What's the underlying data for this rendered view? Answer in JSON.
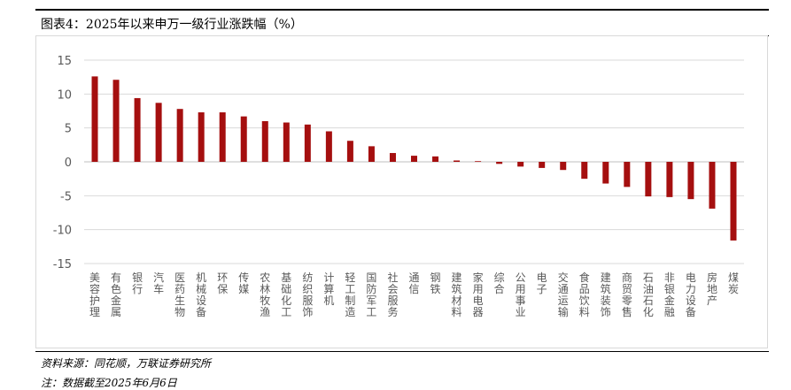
{
  "figure": {
    "title": "图表4：2025年以来申万一级行业涨跌幅（%）",
    "source": "资料来源：同花顺，万联证券研究所",
    "note": "注：数据截至2025年6月6日"
  },
  "colors": {
    "bar": "#A50F0F",
    "grid": "#d9d9d9",
    "axis": "#bfbfbf",
    "text": "#595959"
  },
  "chart_data": {
    "type": "bar",
    "categories": [
      "美容护理",
      "有色金属",
      "银行",
      "汽车",
      "医药生物",
      "机械设备",
      "环保",
      "传媒",
      "农林牧渔",
      "基础化工",
      "纺织服饰",
      "计算机",
      "轻工制造",
      "国防军工",
      "社会服务",
      "通信",
      "钢铁",
      "建筑材料",
      "家用电器",
      "综合",
      "公用事业",
      "电子",
      "交通运输",
      "食品饮料",
      "建筑装饰",
      "商贸零售",
      "石油石化",
      "非银金融",
      "电力设备",
      "房地产",
      "煤炭"
    ],
    "values": [
      12.6,
      12.1,
      9.4,
      8.7,
      7.8,
      7.3,
      7.3,
      6.7,
      6.0,
      5.8,
      5.5,
      4.5,
      3.1,
      2.3,
      1.3,
      0.9,
      0.8,
      0.2,
      0.1,
      -0.3,
      -0.7,
      -0.9,
      -1.2,
      -2.5,
      -3.2,
      -3.7,
      -5.1,
      -5.2,
      -5.5,
      -6.9,
      -11.6
    ],
    "ylim": [
      -15,
      15
    ],
    "yticks": [
      "15",
      "10",
      "5",
      "0",
      "-5",
      "-10",
      "-15"
    ],
    "grid": true,
    "legend": "none"
  }
}
